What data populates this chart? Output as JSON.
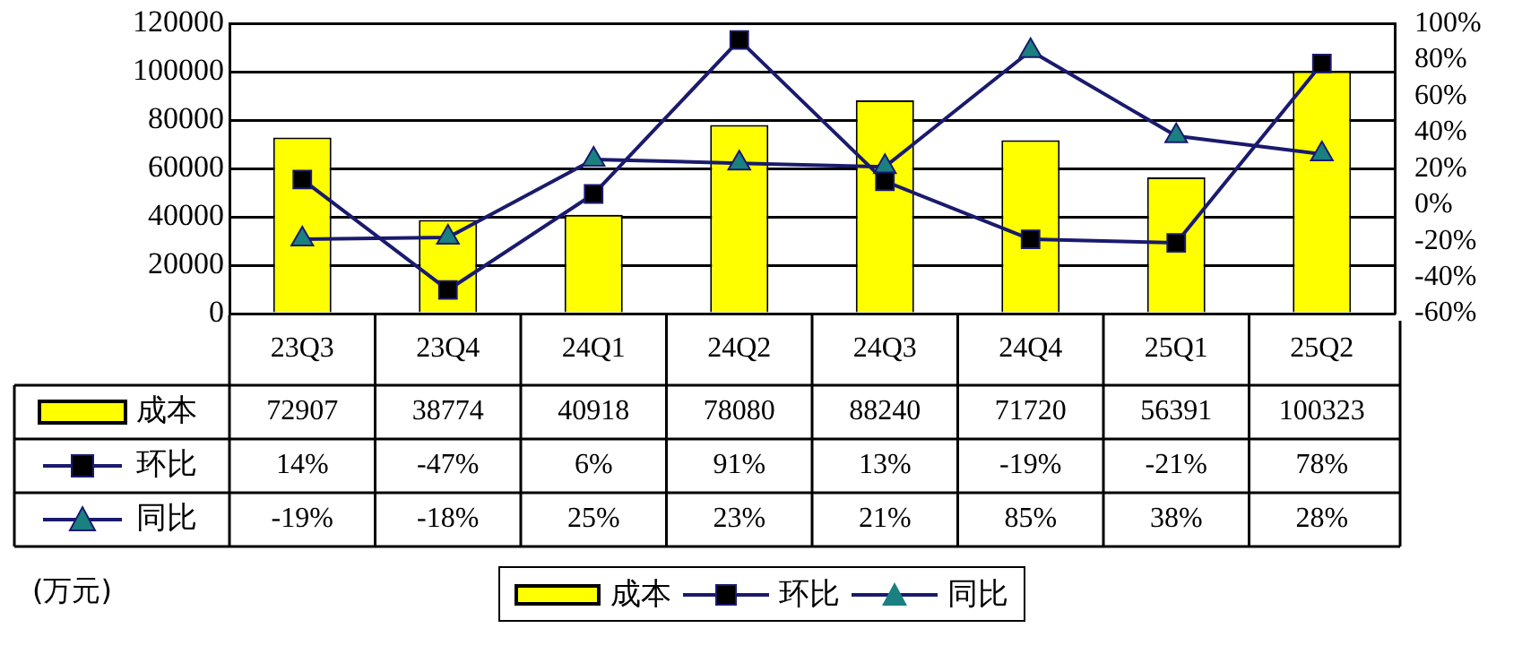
{
  "chart_data": {
    "type": "bar",
    "categories": [
      "23Q3",
      "23Q4",
      "24Q1",
      "24Q2",
      "24Q3",
      "24Q4",
      "25Q1",
      "25Q2"
    ],
    "series": [
      {
        "name": "成本",
        "type": "bar",
        "color": "#ffff00",
        "values": [
          72907,
          38774,
          40918,
          78080,
          88240,
          71720,
          56391,
          100323
        ],
        "value_labels": [
          "72907",
          "38774",
          "40918",
          "78080",
          "88240",
          "71720",
          "56391",
          "100323"
        ]
      },
      {
        "name": "环比",
        "type": "line",
        "axis": "y2",
        "color": "#1a1a6e",
        "marker": "square",
        "values": [
          14,
          -47,
          6,
          91,
          13,
          -19,
          -21,
          78
        ],
        "value_labels": [
          "14%",
          "-47%",
          "6%",
          "91%",
          "13%",
          "-19%",
          "-21%",
          "78%"
        ]
      },
      {
        "name": "同比",
        "type": "line",
        "axis": "y2",
        "color": "#1a1a6e",
        "marker": "triangle",
        "values": [
          -19,
          -18,
          25,
          23,
          21,
          85,
          38,
          28
        ],
        "value_labels": [
          "-19%",
          "-18%",
          "25%",
          "23%",
          "21%",
          "85%",
          "38%",
          "28%"
        ]
      }
    ],
    "annotations": [
      "(万元)"
    ],
    "ylim": [
      0,
      120000
    ],
    "yticks": [
      0,
      20000,
      40000,
      60000,
      80000,
      100000,
      120000
    ],
    "y2lim": [
      -60,
      100
    ],
    "y2ticks": [
      {
        "value": -60,
        "label": "-60%"
      },
      {
        "value": -40,
        "label": "-40%"
      },
      {
        "value": -20,
        "label": "-20%"
      },
      {
        "value": 0,
        "label": "0%"
      },
      {
        "value": 20,
        "label": "20%"
      },
      {
        "value": 40,
        "label": "40%"
      },
      {
        "value": 60,
        "label": "60%"
      },
      {
        "value": 80,
        "label": "80%"
      },
      {
        "value": 100,
        "label": "100%"
      }
    ],
    "grid": "y",
    "legend": "bottom"
  }
}
